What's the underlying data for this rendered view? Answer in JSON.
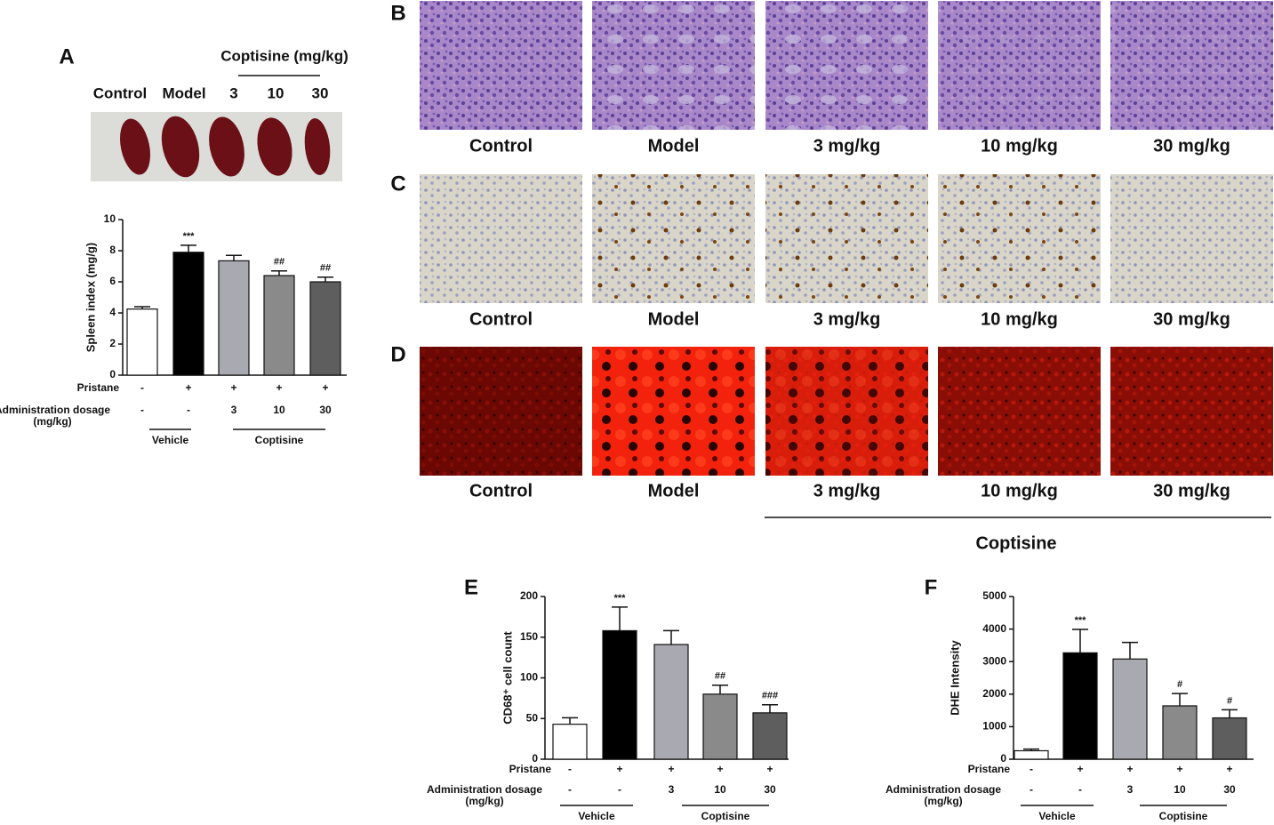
{
  "panel_labels": [
    "A",
    "B",
    "C",
    "D",
    "E",
    "F"
  ],
  "panel_a": {
    "header": "Coptisine (mg/kg)",
    "lanes": [
      "Control",
      "Model",
      "3",
      "10",
      "30"
    ]
  },
  "histology": {
    "rows": [
      {
        "captions": [
          "Control",
          "Model",
          "3 mg/kg",
          "10 mg/kg",
          "30 mg/kg"
        ]
      },
      {
        "captions": [
          "Control",
          "Model",
          "3 mg/kg",
          "10 mg/kg",
          "30 mg/kg"
        ]
      },
      {
        "captions": [
          "Control",
          "Model",
          "3 mg/kg",
          "10 mg/kg",
          "30 mg/kg"
        ]
      }
    ],
    "group_label": "Coptisine"
  },
  "chart_data": [
    {
      "type": "bar",
      "y_label": "Spleen index (mg/g)",
      "values": [
        4.25,
        7.9,
        7.35,
        6.4,
        6.0
      ],
      "errors": [
        0.15,
        0.45,
        0.35,
        0.3,
        0.3
      ],
      "annotations": [
        null,
        "***",
        null,
        "##",
        "##"
      ],
      "colors": [
        "#ffffff",
        "#000000",
        "#a9a9b1",
        "#8a8a8a",
        "#5e5e5e"
      ],
      "ylim": [
        0,
        10
      ],
      "yticks": [
        0,
        2,
        4,
        6,
        8,
        10
      ],
      "rows": [
        {
          "label": "Pristane",
          "values": [
            "-",
            "+",
            "+",
            "+",
            "+"
          ]
        },
        {
          "label": "Administration dosage (mg/kg)",
          "values": [
            "-",
            "-",
            "3",
            "10",
            "30"
          ]
        }
      ],
      "groups": [
        "Vehicle",
        "Coptisine"
      ]
    },
    {
      "type": "bar",
      "y_label": "CD68⁺ cell count",
      "values": [
        43,
        158,
        141,
        80,
        57
      ],
      "errors": [
        8,
        29,
        17,
        11,
        10
      ],
      "annotations": [
        null,
        "***",
        null,
        "##",
        "###"
      ],
      "colors": [
        "#ffffff",
        "#000000",
        "#a9a9b1",
        "#8a8a8a",
        "#5e5e5e"
      ],
      "ylim": [
        0,
        200
      ],
      "yticks": [
        0,
        50,
        100,
        150,
        200
      ],
      "rows": [
        {
          "label": "Pristane",
          "values": [
            "-",
            "+",
            "+",
            "+",
            "+"
          ]
        },
        {
          "label": "Administration dosage (mg/kg)",
          "values": [
            "-",
            "-",
            "3",
            "10",
            "30"
          ]
        }
      ],
      "groups": [
        "Vehicle",
        "Coptisine"
      ]
    },
    {
      "type": "bar",
      "y_label": "DHE Intensity",
      "values": [
        260,
        3270,
        3080,
        1640,
        1270
      ],
      "errors": [
        50,
        720,
        510,
        380,
        250
      ],
      "annotations": [
        null,
        "***",
        null,
        "#",
        "#"
      ],
      "colors": [
        "#ffffff",
        "#000000",
        "#a9a9b1",
        "#8a8a8a",
        "#5e5e5e"
      ],
      "ylim": [
        0,
        5000
      ],
      "yticks": [
        0,
        1000,
        2000,
        3000,
        4000,
        5000
      ],
      "rows": [
        {
          "label": "Pristane",
          "values": [
            "-",
            "+",
            "+",
            "+",
            "+"
          ]
        },
        {
          "label": "Administration dosage (mg/kg)",
          "values": [
            "-",
            "-",
            "3",
            "10",
            "30"
          ]
        }
      ],
      "groups": [
        "Vehicle",
        "Coptisine"
      ]
    }
  ]
}
